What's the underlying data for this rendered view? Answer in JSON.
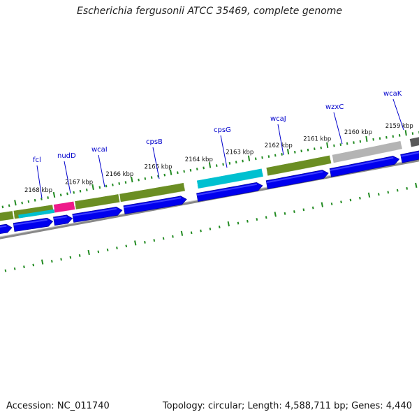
{
  "title": "Escherichia fergusonii ATCC 35469, complete genome",
  "footer": {
    "accession": "Accession: NC_011740",
    "summary": "Topology: circular; Length: 4,588,711 bp; Genes: 4,440"
  },
  "colors": {
    "tick": "#228b22",
    "gene_label": "#0000cc",
    "kbp_label": "#111111",
    "strand_arrow": "#0000ee",
    "backbone": "#888888",
    "olive": "#6b8e23",
    "cyan": "#00c0d0",
    "magenta": "#ee1a8a",
    "light_grey": "#b4b4b4",
    "dark_grey": "#5a5a5a"
  },
  "kbp_labels": [
    "2159 kbp",
    "2160 kbp",
    "2161 kbp",
    "2162 kbp",
    "2163 kbp",
    "2164 kbp",
    "2165 kbp",
    "2166 kbp",
    "2167 kbp",
    "2168 kbp"
  ],
  "gene_labels": [
    "wcaK",
    "wzxC",
    "wcaJ",
    "cpsG",
    "cpsB",
    "wcaI",
    "nudD",
    "fcl"
  ],
  "feature_colors": [
    "dark_grey",
    "light_grey",
    "olive",
    "cyan",
    "olive",
    "olive",
    "magenta",
    "olive"
  ]
}
